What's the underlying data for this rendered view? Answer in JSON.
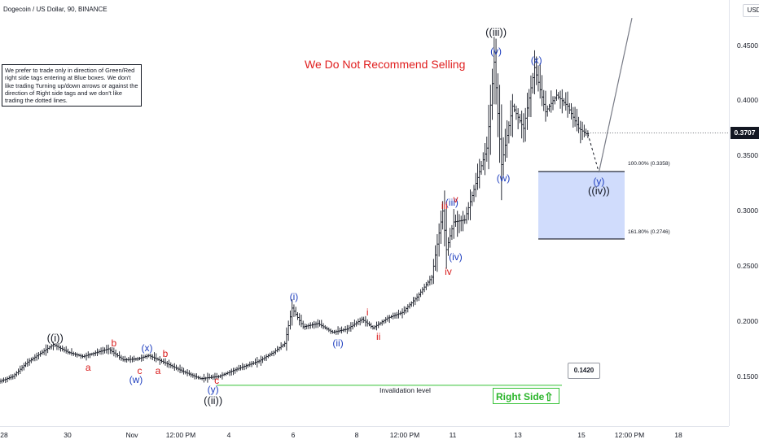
{
  "header": {
    "title": "Dogecoin / US Dollar, 90, BINANCE",
    "currency": "USD"
  },
  "disclaimer": "We prefer to trade only in direction of Green/Red right side tags entering at Blue boxes. We don't like trading Turning up/down arrows or against the direction of Right side tags and we don't like trading the dotted lines.",
  "warning": "We Do Not Recommend Selling",
  "invalidation": {
    "label": "Invalidation level",
    "value": "0.1420"
  },
  "right_side": {
    "label": "Right Side",
    "arrow": "⇧",
    "color": "#2bb52b"
  },
  "fib_levels": [
    {
      "label": "100.00% (0.3358)",
      "value": 0.3358
    },
    {
      "label": "161.80% (0.2746)",
      "value": 0.2746
    }
  ],
  "last_price": "0.3707",
  "colors": {
    "up": "#131722",
    "blue_box": "#c8d6fb",
    "wave_blue": "#1f3fbf",
    "wave_red": "#d81b1b",
    "invalidation": "#35c235"
  },
  "chart_data": {
    "type": "ohlc",
    "title": "Dogecoin / US Dollar, 90, BINANCE",
    "ylim": [
      0.11,
      0.48
    ],
    "y_ticks": [
      "0.4500",
      "0.4000",
      "0.3500",
      "0.3000",
      "0.2500",
      "0.2000",
      "0.1500"
    ],
    "x_ticks": [
      "28",
      "30",
      "Nov",
      "12:00 PM",
      "4",
      "6",
      "8",
      "12:00 PM",
      "11",
      "13",
      "15",
      "12:00 PM",
      "18"
    ],
    "price_path": [
      {
        "t": 0,
        "v": 0.145
      },
      {
        "t": 4,
        "v": 0.15
      },
      {
        "t": 8,
        "v": 0.163
      },
      {
        "t": 12,
        "v": 0.172
      },
      {
        "t": 15,
        "v": 0.179
      },
      {
        "t": 19,
        "v": 0.172
      },
      {
        "t": 23,
        "v": 0.168
      },
      {
        "t": 27,
        "v": 0.172
      },
      {
        "t": 30,
        "v": 0.175
      },
      {
        "t": 34,
        "v": 0.165
      },
      {
        "t": 38,
        "v": 0.166
      },
      {
        "t": 41,
        "v": 0.169
      },
      {
        "t": 45,
        "v": 0.163
      },
      {
        "t": 50,
        "v": 0.155
      },
      {
        "t": 55,
        "v": 0.148
      },
      {
        "t": 60,
        "v": 0.15
      },
      {
        "t": 66,
        "v": 0.158
      },
      {
        "t": 71,
        "v": 0.164
      },
      {
        "t": 75,
        "v": 0.172
      },
      {
        "t": 78,
        "v": 0.18
      },
      {
        "t": 80,
        "v": 0.212
      },
      {
        "t": 83,
        "v": 0.195
      },
      {
        "t": 87,
        "v": 0.198
      },
      {
        "t": 91,
        "v": 0.19
      },
      {
        "t": 95,
        "v": 0.193
      },
      {
        "t": 99,
        "v": 0.202
      },
      {
        "t": 102,
        "v": 0.194
      },
      {
        "t": 106,
        "v": 0.203
      },
      {
        "t": 110,
        "v": 0.208
      },
      {
        "t": 114,
        "v": 0.222
      },
      {
        "t": 118,
        "v": 0.24
      },
      {
        "t": 121,
        "v": 0.3
      },
      {
        "t": 122,
        "v": 0.265
      },
      {
        "t": 124,
        "v": 0.29
      },
      {
        "t": 127,
        "v": 0.292
      },
      {
        "t": 130,
        "v": 0.325
      },
      {
        "t": 133,
        "v": 0.357
      },
      {
        "t": 135,
        "v": 0.435
      },
      {
        "t": 137,
        "v": 0.342
      },
      {
        "t": 140,
        "v": 0.395
      },
      {
        "t": 143,
        "v": 0.375
      },
      {
        "t": 146,
        "v": 0.43
      },
      {
        "t": 149,
        "v": 0.39
      },
      {
        "t": 152,
        "v": 0.405
      },
      {
        "t": 155,
        "v": 0.395
      },
      {
        "t": 158,
        "v": 0.375
      },
      {
        "t": 160,
        "v": 0.37
      }
    ],
    "projection": [
      {
        "t": 160,
        "v": 0.37
      },
      {
        "t": 163,
        "v": 0.335
      }
    ],
    "projection_up": [
      {
        "t": 163,
        "v": 0.335
      },
      {
        "t": 172,
        "v": 0.475
      }
    ],
    "invalidation_level": 0.142,
    "target_box": {
      "high": 0.3358,
      "low": 0.2746
    },
    "wave_labels": [
      {
        "text": "((i))",
        "t": 15,
        "v": 0.185,
        "color": "black"
      },
      {
        "text": "((ii))",
        "t": 58,
        "v": 0.128,
        "color": "black"
      },
      {
        "text": "((iii))",
        "t": 135,
        "v": 0.462,
        "color": "black"
      },
      {
        "text": "((iv))",
        "t": 163,
        "v": 0.318,
        "color": "black"
      },
      {
        "text": "(w)",
        "t": 37,
        "v": 0.147,
        "color": "blue"
      },
      {
        "text": "(x)",
        "t": 40,
        "v": 0.176,
        "color": "blue"
      },
      {
        "text": "(y)",
        "t": 58,
        "v": 0.138,
        "color": "blue"
      },
      {
        "text": "(i)",
        "t": 80,
        "v": 0.222,
        "color": "blue"
      },
      {
        "text": "(ii)",
        "t": 92,
        "v": 0.18,
        "color": "blue"
      },
      {
        "text": "(iii)",
        "t": 123,
        "v": 0.308,
        "color": "blue"
      },
      {
        "text": "(iv)",
        "t": 124,
        "v": 0.258,
        "color": "blue"
      },
      {
        "text": "(v)",
        "t": 135,
        "v": 0.445,
        "color": "blue"
      },
      {
        "text": "(w)",
        "t": 137,
        "v": 0.33,
        "color": "blue"
      },
      {
        "text": "(x)",
        "t": 146,
        "v": 0.437,
        "color": "blue"
      },
      {
        "text": "(y)",
        "t": 163,
        "v": 0.327,
        "color": "blue"
      },
      {
        "text": "a",
        "t": 24,
        "v": 0.158,
        "color": "red"
      },
      {
        "text": "b",
        "t": 31,
        "v": 0.18,
        "color": "red"
      },
      {
        "text": "c",
        "t": 38,
        "v": 0.155,
        "color": "red"
      },
      {
        "text": "a",
        "t": 43,
        "v": 0.155,
        "color": "red"
      },
      {
        "text": "b",
        "t": 45,
        "v": 0.171,
        "color": "red"
      },
      {
        "text": "c",
        "t": 59,
        "v": 0.146,
        "color": "red"
      },
      {
        "text": "i",
        "t": 100,
        "v": 0.208,
        "color": "red"
      },
      {
        "text": "ii",
        "t": 103,
        "v": 0.186,
        "color": "red"
      },
      {
        "text": "iii",
        "t": 121,
        "v": 0.305,
        "color": "red"
      },
      {
        "text": "iv",
        "t": 122,
        "v": 0.245,
        "color": "red"
      },
      {
        "text": "v",
        "t": 124,
        "v": 0.311,
        "color": "red"
      }
    ]
  }
}
